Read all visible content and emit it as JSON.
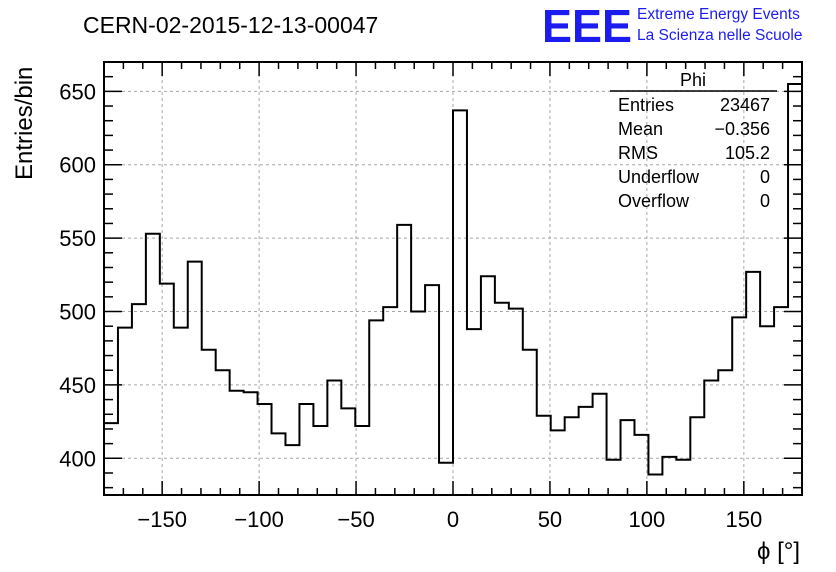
{
  "title": "CERN-02-2015-12-13-00047",
  "logo": {
    "mark": "EEE",
    "line1": "Extreme Energy Events",
    "line2": "La Scienza nelle Scuole"
  },
  "stats": {
    "name": "Phi",
    "rows": [
      {
        "label": "Entries",
        "value": "23467"
      },
      {
        "label": "Mean",
        "value": "−0.356"
      },
      {
        "label": "RMS",
        "value": "105.2"
      },
      {
        "label": "Underflow",
        "value": "0"
      },
      {
        "label": "Overflow",
        "value": "0"
      }
    ]
  },
  "colors": {
    "line": "#000000",
    "grid": "#a8a8a8",
    "logo": "#1c1cf0"
  },
  "chart_data": {
    "type": "line",
    "style": "histogram-step",
    "xlabel": "ϕ [°]",
    "ylabel": "Entries/bin",
    "xlim": [
      -180,
      180
    ],
    "ylim": [
      375,
      670
    ],
    "grid": true,
    "xticks": [
      -150,
      -100,
      -50,
      0,
      50,
      100,
      150
    ],
    "xtick_labels": [
      "−150",
      "−100",
      "−50",
      "0",
      "50",
      "100",
      "150"
    ],
    "yticks": [
      400,
      450,
      500,
      550,
      600,
      650
    ],
    "ytick_labels": [
      "400",
      "450",
      "500",
      "550",
      "600",
      "650"
    ],
    "bin_width": 7.2,
    "bin_edges_start": -180,
    "values": [
      424,
      489,
      505,
      553,
      519,
      489,
      534,
      474,
      460,
      446,
      445,
      437,
      417,
      409,
      437,
      422,
      453,
      434,
      422,
      494,
      503,
      559,
      500,
      518,
      397,
      637,
      488,
      524,
      506,
      502,
      474,
      429,
      419,
      428,
      435,
      444,
      399,
      426,
      416,
      389,
      401,
      399,
      428,
      453,
      460,
      496,
      527,
      490,
      503,
      655
    ]
  }
}
